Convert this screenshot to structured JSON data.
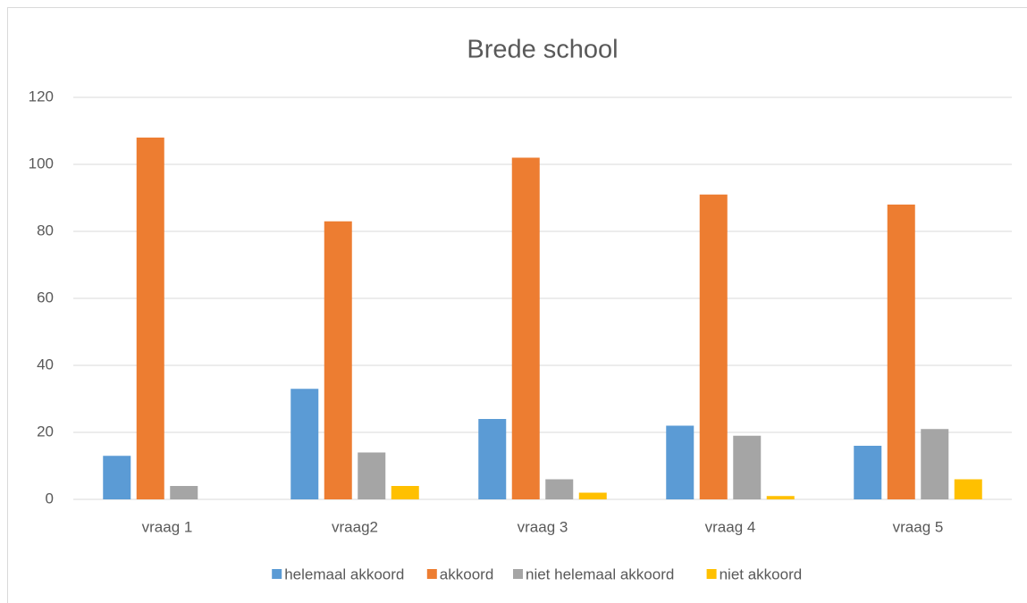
{
  "chart_data": {
    "type": "bar",
    "title": "Brede school",
    "categories": [
      "vraag 1",
      "vraag2",
      "vraag 3",
      "vraag 4",
      "vraag 5"
    ],
    "series": [
      {
        "name": "helemaal akkoord",
        "color": "#5b9bd5",
        "values": [
          13,
          33,
          24,
          22,
          16
        ]
      },
      {
        "name": "akkoord",
        "color": "#ed7d31",
        "values": [
          108,
          83,
          102,
          91,
          88
        ]
      },
      {
        "name": "niet helemaal akkoord",
        "color": "#a5a5a5",
        "values": [
          4,
          14,
          6,
          19,
          21
        ]
      },
      {
        "name": "niet akkoord",
        "color": "#ffc000",
        "values": [
          0,
          4,
          2,
          1,
          6
        ]
      }
    ],
    "ylim": [
      0,
      120
    ],
    "yticks": [
      0,
      20,
      40,
      60,
      80,
      100,
      120
    ],
    "grid": true,
    "legend": "bottom"
  }
}
